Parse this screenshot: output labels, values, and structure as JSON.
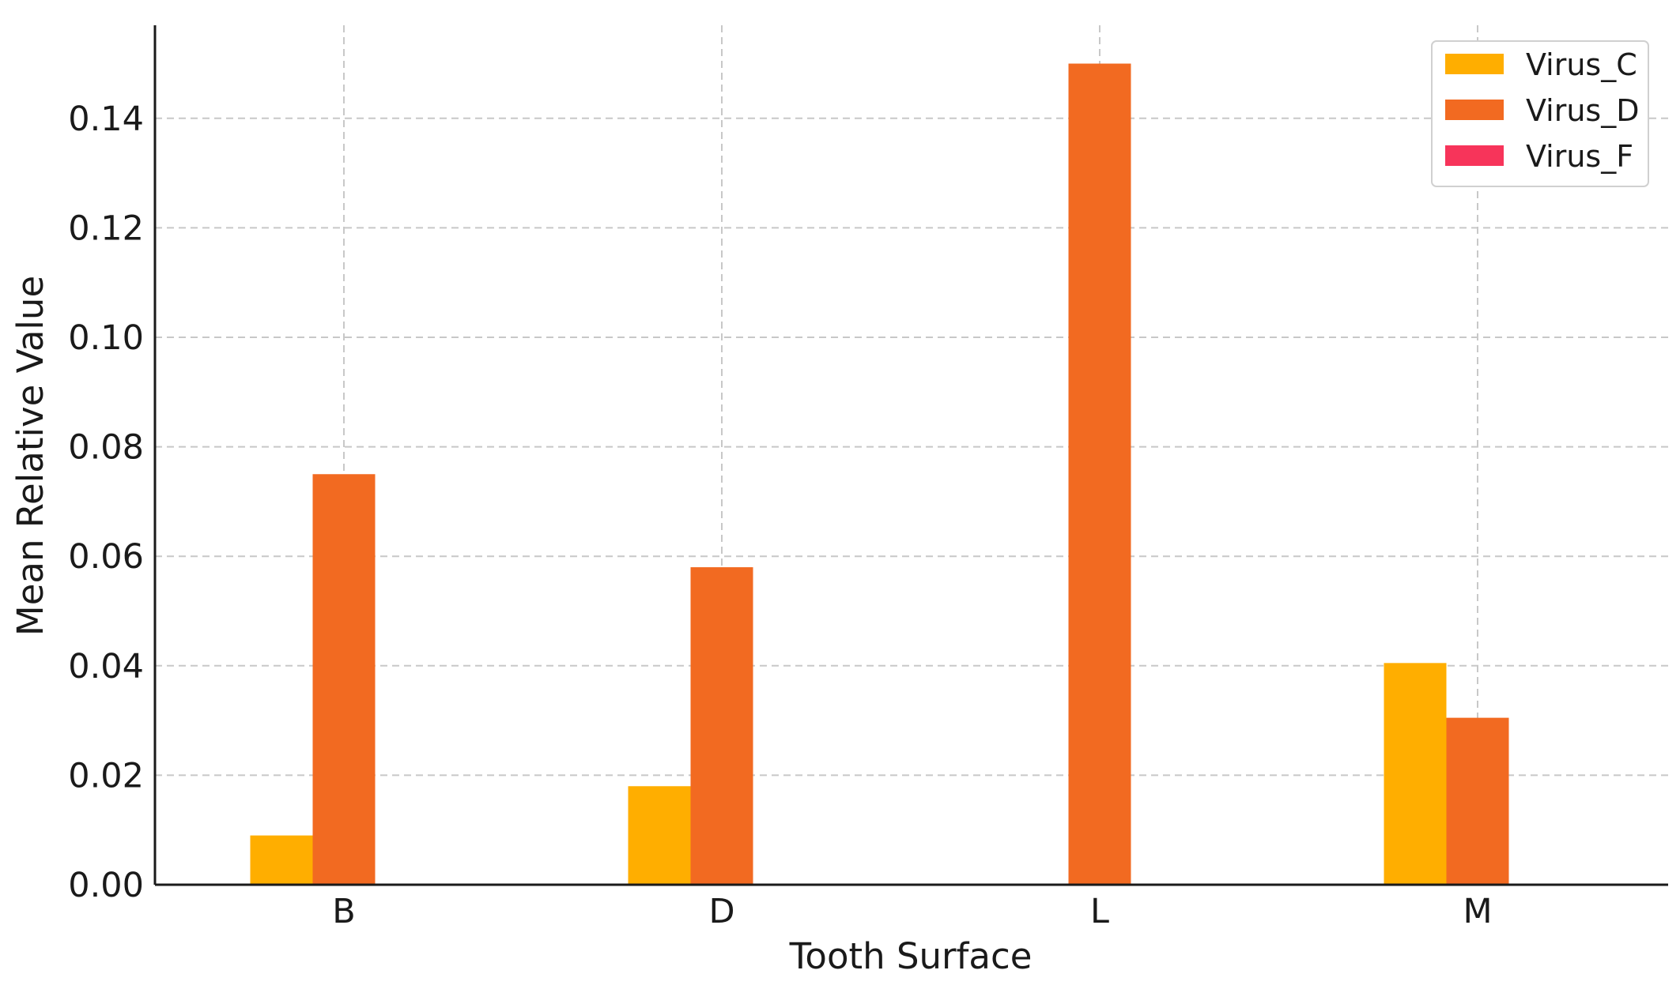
{
  "chart_data": {
    "type": "bar",
    "title": "",
    "xlabel": "Tooth Surface",
    "ylabel": "Mean Relative Value",
    "categories": [
      "B",
      "D",
      "L",
      "M"
    ],
    "series": [
      {
        "name": "Virus_C",
        "color": "#FFAE00",
        "values": [
          0.009,
          0.018,
          0.0,
          0.0405
        ]
      },
      {
        "name": "Virus_D",
        "color": "#F26A21",
        "values": [
          0.075,
          0.058,
          0.15,
          0.0305
        ]
      },
      {
        "name": "Virus_F",
        "color": "#F7345A",
        "values": [
          0.0,
          0.0,
          0.0,
          0.0
        ]
      }
    ],
    "ylim": [
      0,
      0.157
    ],
    "yticks": [
      "0.00",
      "0.02",
      "0.04",
      "0.06",
      "0.08",
      "0.10",
      "0.12",
      "0.14"
    ],
    "grid": true,
    "legend_position": "top-right"
  }
}
